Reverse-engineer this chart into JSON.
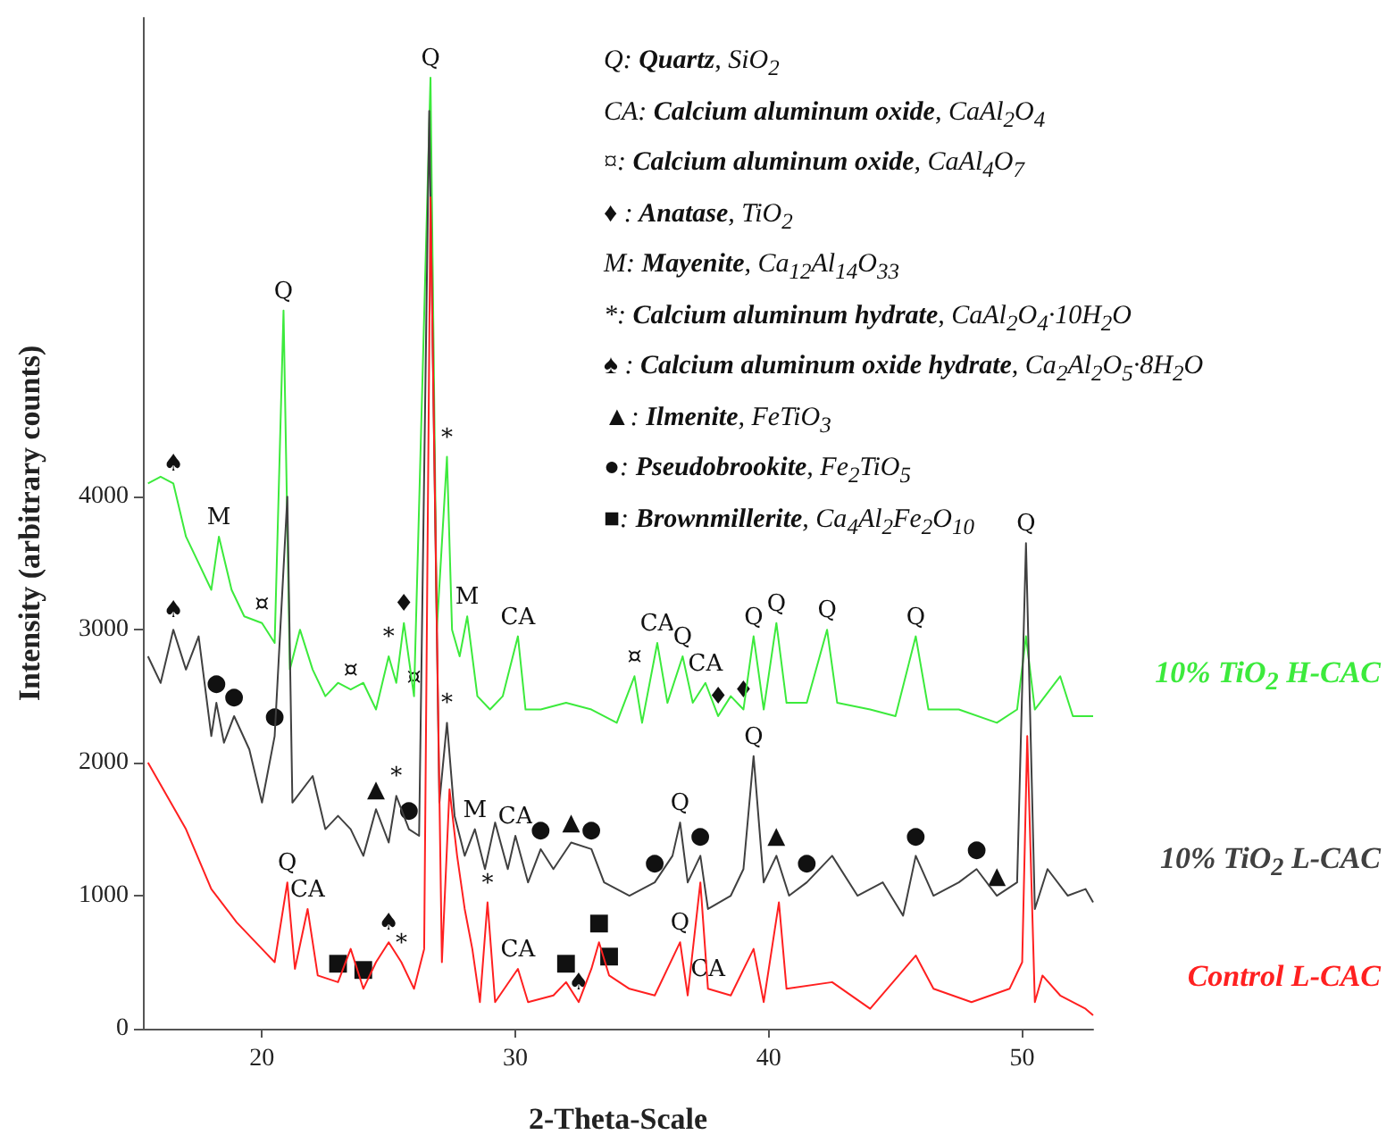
{
  "chart_data": {
    "type": "line",
    "xlabel": "2-Theta-Scale",
    "ylabel": "Intensity (arbitrary counts)",
    "xlim": [
      15.3,
      52.8
    ],
    "ylim": [
      0,
      7600
    ],
    "xticks": [
      20,
      30,
      40,
      50
    ],
    "yticks": [
      0,
      1000,
      2000,
      3000,
      4000
    ],
    "series": [
      {
        "name": "10% TiO$_{2}$ H-CAC",
        "color": "#3cea3c",
        "x": [
          15.5,
          16,
          16.5,
          17,
          17.5,
          18,
          18.3,
          18.8,
          19.3,
          20,
          20.5,
          20.85,
          21.1,
          21.5,
          22,
          22.5,
          23,
          23.5,
          24,
          24.5,
          25,
          25.3,
          25.6,
          26,
          26.65,
          26.9,
          27.3,
          27.5,
          27.8,
          28.1,
          28.5,
          29,
          29.5,
          30.1,
          30.4,
          31,
          32,
          33,
          34,
          34.7,
          35,
          35.6,
          36,
          36.6,
          37,
          37.5,
          38,
          38.5,
          39,
          39.4,
          39.8,
          40.3,
          40.7,
          41.5,
          42.3,
          42.7,
          44,
          45,
          45.8,
          46.3,
          47.5,
          49,
          49.8,
          50.15,
          50.5,
          51.5,
          52,
          52.8
        ],
        "values": [
          4100,
          4150,
          4100,
          3700,
          3500,
          3300,
          3700,
          3300,
          3100,
          3050,
          2900,
          5400,
          2700,
          3000,
          2700,
          2500,
          2600,
          2550,
          2600,
          2400,
          2800,
          2600,
          3050,
          2500,
          7150,
          3000,
          4300,
          3000,
          2800,
          3100,
          2500,
          2400,
          2500,
          2950,
          2400,
          2400,
          2450,
          2400,
          2300,
          2650,
          2300,
          2900,
          2450,
          2800,
          2450,
          2600,
          2350,
          2500,
          2400,
          2950,
          2400,
          3050,
          2450,
          2450,
          3000,
          2450,
          2400,
          2350,
          2950,
          2400,
          2400,
          2300,
          2400,
          2950,
          2400,
          2650,
          2350,
          2350
        ]
      },
      {
        "name": "10% TiO$_{2}$ L-CAC",
        "color": "#404040",
        "x": [
          15.5,
          16,
          16.5,
          17,
          17.5,
          18,
          18.2,
          18.5,
          18.9,
          19.5,
          20,
          20.5,
          21,
          21.2,
          22,
          22.5,
          23,
          23.5,
          24,
          24.5,
          25,
          25.3,
          25.8,
          26.2,
          26.6,
          27,
          27.3,
          27.6,
          28,
          28.4,
          28.8,
          29.2,
          29.7,
          30,
          30.5,
          31,
          31.5,
          32.2,
          33,
          33.5,
          34.5,
          35.5,
          36.2,
          36.5,
          36.8,
          37.3,
          37.6,
          38.5,
          39,
          39.4,
          39.8,
          40.3,
          40.8,
          41.5,
          42.5,
          43.5,
          44.5,
          45.3,
          45.8,
          46.5,
          47.5,
          48.2,
          49,
          49.8,
          50.15,
          50.5,
          51,
          51.8,
          52.5,
          52.8
        ],
        "values": [
          2800,
          2600,
          3000,
          2700,
          2950,
          2200,
          2450,
          2150,
          2350,
          2100,
          1700,
          2200,
          4000,
          1700,
          1900,
          1500,
          1600,
          1500,
          1300,
          1650,
          1400,
          1750,
          1500,
          1450,
          6900,
          1700,
          2300,
          1600,
          1300,
          1500,
          1200,
          1550,
          1200,
          1450,
          1100,
          1350,
          1200,
          1400,
          1350,
          1100,
          1000,
          1100,
          1300,
          1550,
          1100,
          1300,
          900,
          1000,
          1200,
          2050,
          1100,
          1300,
          1000,
          1100,
          1300,
          1000,
          1100,
          850,
          1300,
          1000,
          1100,
          1200,
          1000,
          1100,
          3650,
          900,
          1200,
          1000,
          1050,
          950
        ]
      },
      {
        "name": "Control L-CAC",
        "color": "#ff2020",
        "x": [
          15.5,
          17,
          18,
          19,
          20,
          20.5,
          21,
          21.3,
          21.8,
          22.2,
          23,
          23.5,
          24,
          24.5,
          25,
          25.5,
          26,
          26.4,
          26.65,
          27.1,
          27.4,
          27.7,
          28,
          28.3,
          28.6,
          28.9,
          29.2,
          30.1,
          30.5,
          31.5,
          32,
          32.5,
          33,
          33.3,
          33.7,
          34.5,
          35.5,
          36.5,
          36.8,
          37.3,
          37.6,
          38.5,
          39.4,
          39.8,
          40.4,
          40.7,
          42.5,
          44,
          45.8,
          46.5,
          48,
          49.5,
          50,
          50.2,
          50.5,
          50.8,
          51.5,
          52.5,
          52.8
        ],
        "values": [
          2000,
          1500,
          1050,
          800,
          600,
          500,
          1100,
          450,
          900,
          400,
          350,
          600,
          300,
          500,
          650,
          500,
          300,
          600,
          6250,
          500,
          1800,
          1300,
          900,
          600,
          200,
          950,
          200,
          450,
          200,
          250,
          350,
          200,
          450,
          650,
          400,
          300,
          250,
          650,
          250,
          1100,
          300,
          250,
          600,
          200,
          950,
          300,
          350,
          150,
          550,
          300,
          200,
          300,
          500,
          2200,
          200,
          400,
          250,
          150,
          100
        ]
      }
    ],
    "annotations": [
      "Q: Quartz, SiO$_{2}$",
      "CA: Calcium aluminum oxide, CaAl$_{2}$O$_{4}$",
      "¤: Calcium aluminum oxide, CaAl$_{4}$O$_{7}$",
      "♦ : Anatase, TiO$_{2}$",
      "M: Mayenite, Ca$_{12}$Al$_{14}$O$_{33}$",
      "*: Calcium aluminum hydrate, CaAl$_{2}$O$_{4}$·10H$_{2}$O",
      "♠ : Calcium aluminum oxide hydrate, Ca$_{2}$Al$_{2}$O$_{5}$·8H$_{2}$O",
      "▲: Ilmenite, FeTiO$_{3}$",
      "●: Pseudobrookite, Fe$_{2}$TiO$_{5}$",
      "■: Brownmillerite, Ca$_{4}$Al$_{2}$Fe$_{2}$O$_{10}$",
      {
        "text": "♠",
        "x": 16.5,
        "y": 4100
      },
      {
        "text": "Q",
        "x": 20.85,
        "y": 5400
      },
      {
        "text": "M",
        "x": 18.3,
        "y": 3700
      },
      {
        "text": "¤",
        "x": 20,
        "y": 3050
      },
      {
        "text": "¤",
        "x": 23.5,
        "y": 2550
      },
      {
        "text": "*",
        "x": 25,
        "y": 2800
      },
      {
        "text": "♦",
        "x": 25.6,
        "y": 3050
      },
      {
        "text": "¤",
        "x": 26,
        "y": 2500
      },
      {
        "text": "Q",
        "x": 26.65,
        "y": 7150
      },
      {
        "text": "*",
        "x": 27.3,
        "y": 4300
      },
      {
        "text": "M",
        "x": 28.1,
        "y": 3100
      },
      {
        "text": "CA",
        "x": 30.1,
        "y": 2950
      },
      {
        "text": "¤",
        "x": 34.7,
        "y": 2650
      },
      {
        "text": "CA",
        "x": 35.6,
        "y": 2900
      },
      {
        "text": "Q",
        "x": 36.6,
        "y": 2800
      },
      {
        "text": "CA",
        "x": 37.5,
        "y": 2600
      },
      {
        "text": "♦",
        "x": 38,
        "y": 2350
      },
      {
        "text": "♦",
        "x": 39,
        "y": 2400
      },
      {
        "text": "Q",
        "x": 39.4,
        "y": 2950
      },
      {
        "text": "Q",
        "x": 40.3,
        "y": 3050
      },
      {
        "text": "Q",
        "x": 42.3,
        "y": 3000
      },
      {
        "text": "Q",
        "x": 45.8,
        "y": 2950
      },
      {
        "text": "Q",
        "x": 50.15,
        "y": 3650
      },
      {
        "text": "♠",
        "x": 16.5,
        "y": 3000
      },
      {
        "text": "●",
        "x": 18.2,
        "y": 2450
      },
      {
        "text": "●",
        "x": 18.9,
        "y": 2350
      },
      {
        "text": "●",
        "x": 20.5,
        "y": 2200
      },
      {
        "text": "▲",
        "x": 24.5,
        "y": 1650
      },
      {
        "text": "*",
        "x": 25.3,
        "y": 1750
      },
      {
        "text": "●",
        "x": 25.8,
        "y": 1500
      },
      {
        "text": "*",
        "x": 27.3,
        "y": 2300
      },
      {
        "text": "M",
        "x": 28.4,
        "y": 1500
      },
      {
        "text": "CA",
        "x": 30,
        "y": 1450
      },
      {
        "text": "●",
        "x": 31,
        "y": 1350
      },
      {
        "text": "▲",
        "x": 32.2,
        "y": 1400
      },
      {
        "text": "●",
        "x": 33,
        "y": 1350
      },
      {
        "text": "●",
        "x": 35.5,
        "y": 1100
      },
      {
        "text": "Q",
        "x": 36.5,
        "y": 1550
      },
      {
        "text": "●",
        "x": 37.3,
        "y": 1300
      },
      {
        "text": "Q",
        "x": 39.4,
        "y": 2050
      },
      {
        "text": "▲",
        "x": 40.3,
        "y": 1300
      },
      {
        "text": "●",
        "x": 41.5,
        "y": 1100
      },
      {
        "text": "●",
        "x": 45.8,
        "y": 1300
      },
      {
        "text": "●",
        "x": 48.2,
        "y": 1200
      },
      {
        "text": "▲",
        "x": 49,
        "y": 1000
      },
      {
        "text": "Q",
        "x": 21,
        "y": 1100
      },
      {
        "text": "CA",
        "x": 21.8,
        "y": 900
      },
      {
        "text": "■",
        "x": 23,
        "y": 350
      },
      {
        "text": "■",
        "x": 24,
        "y": 300
      },
      {
        "text": "♠",
        "x": 25,
        "y": 650
      },
      {
        "text": "*",
        "x": 25.5,
        "y": 500
      },
      {
        "text": "*",
        "x": 28.9,
        "y": 950
      },
      {
        "text": "CA",
        "x": 30.1,
        "y": 450
      },
      {
        "text": "■",
        "x": 32,
        "y": 350
      },
      {
        "text": "♠",
        "x": 32.5,
        "y": 200
      },
      {
        "text": "■",
        "x": 33.3,
        "y": 650
      },
      {
        "text": "■",
        "x": 33.7,
        "y": 400
      },
      {
        "text": "Q",
        "x": 36.5,
        "y": 650
      },
      {
        "text": "CA",
        "x": 37.6,
        "y": 300
      }
    ]
  }
}
